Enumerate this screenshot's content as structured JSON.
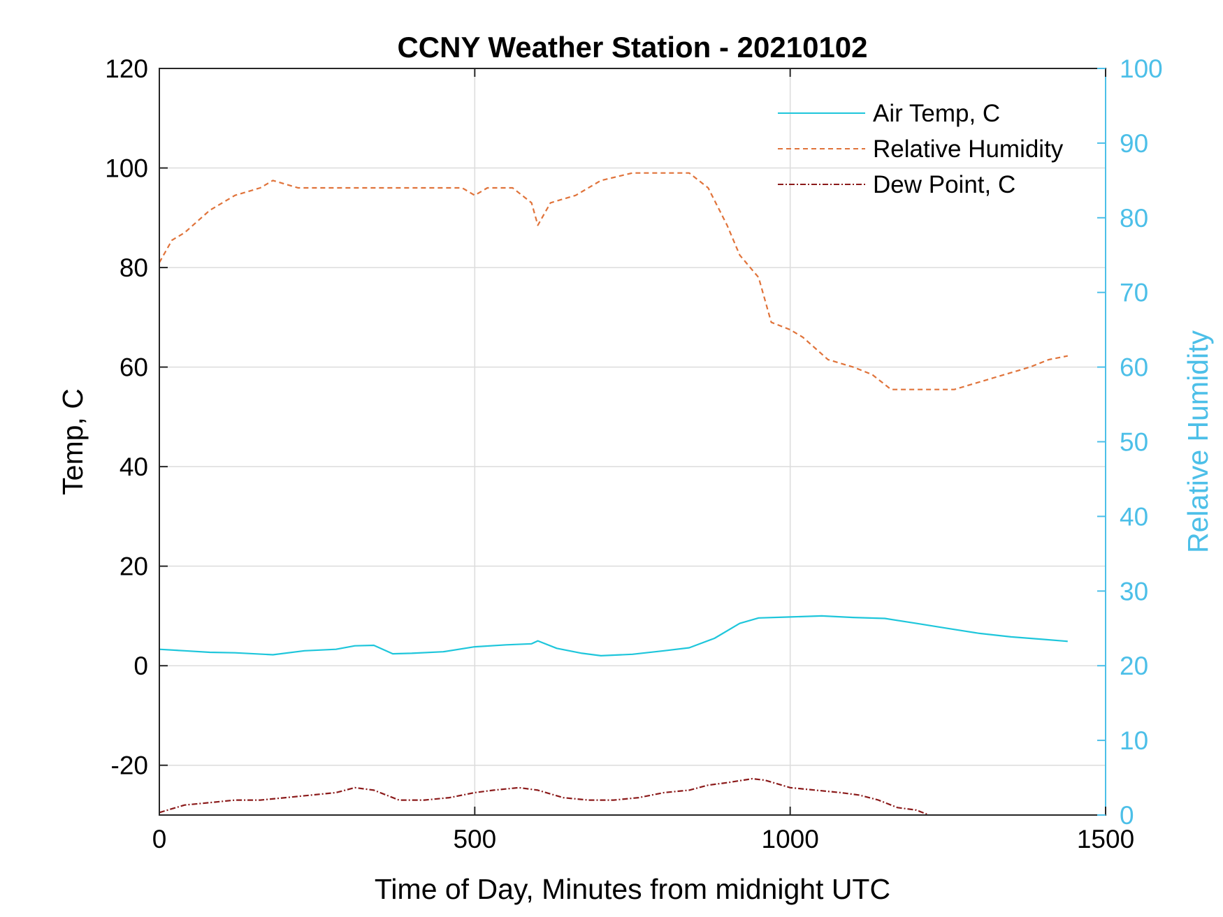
{
  "chart_data": {
    "type": "line",
    "title": "CCNY Weather Station - 20210102",
    "xlabel": "Time of Day, Minutes from midnight UTC",
    "ylabel_left": "Temp, C",
    "ylabel_right": "Relative Humidity",
    "xlim": [
      0,
      1500
    ],
    "ylim_left": [
      -30,
      120
    ],
    "ylim_right": [
      0,
      100
    ],
    "x_ticks": [
      "0",
      "500",
      "1000",
      "1500"
    ],
    "y_ticks_left": [
      "-20",
      "0",
      "20",
      "40",
      "60",
      "80",
      "100",
      "120"
    ],
    "y_ticks_right": [
      "0",
      "10",
      "20",
      "30",
      "40",
      "50",
      "60",
      "70",
      "80",
      "90",
      "100"
    ],
    "grid": true,
    "legend_position": "top-right",
    "colors": {
      "air_temp": "#1ec6db",
      "relative_humidity": "#e0733a",
      "dew_point": "#8b1a1a",
      "right_axis": "#4cbfe8"
    },
    "series": [
      {
        "name": "Air Temp, C",
        "axis": "left",
        "style": "solid",
        "x": [
          0,
          40,
          80,
          120,
          180,
          230,
          280,
          310,
          340,
          370,
          400,
          450,
          500,
          550,
          590,
          600,
          630,
          670,
          700,
          750,
          800,
          840,
          880,
          920,
          950,
          1000,
          1050,
          1100,
          1150,
          1200,
          1250,
          1300,
          1350,
          1400,
          1440
        ],
        "y": [
          3.3,
          3.0,
          2.7,
          2.6,
          2.2,
          3.0,
          3.3,
          4.0,
          4.1,
          2.4,
          2.5,
          2.8,
          3.8,
          4.2,
          4.4,
          5.0,
          3.5,
          2.5,
          2.0,
          2.3,
          3.0,
          3.6,
          5.5,
          8.5,
          9.6,
          9.8,
          10.0,
          9.7,
          9.5,
          8.5,
          7.5,
          6.5,
          5.8,
          5.3,
          4.9
        ]
      },
      {
        "name": "Relative Humidity",
        "axis": "right",
        "style": "dashed",
        "x": [
          0,
          20,
          40,
          80,
          120,
          160,
          180,
          220,
          260,
          300,
          340,
          380,
          420,
          450,
          480,
          500,
          520,
          560,
          590,
          600,
          620,
          660,
          700,
          750,
          800,
          840,
          870,
          900,
          920,
          950,
          970,
          1000,
          1020,
          1060,
          1100,
          1130,
          1160,
          1180,
          1200,
          1230,
          1260,
          1300,
          1340,
          1380,
          1410,
          1440
        ],
        "y": [
          74,
          77,
          78,
          81,
          83,
          84,
          85,
          84,
          84,
          84,
          84,
          84,
          84,
          84,
          84,
          83,
          84,
          84,
          82,
          79,
          82,
          83,
          85,
          86,
          86,
          86,
          84,
          79,
          75,
          72,
          66,
          65,
          64,
          61,
          60,
          59,
          57,
          57,
          57,
          57,
          57,
          58,
          59,
          60,
          61,
          61.5
        ]
      },
      {
        "name": "Dew Point, C",
        "axis": "left",
        "style": "dash-dot",
        "x": [
          0,
          40,
          80,
          120,
          160,
          200,
          240,
          280,
          310,
          340,
          380,
          420,
          460,
          500,
          530,
          570,
          600,
          640,
          680,
          720,
          760,
          800,
          840,
          870,
          900,
          940,
          960,
          1000,
          1040,
          1080,
          1110,
          1140,
          1170,
          1200,
          1220
        ],
        "y": [
          -29.5,
          -28.0,
          -27.5,
          -27.0,
          -27.0,
          -26.5,
          -26.0,
          -25.5,
          -24.5,
          -25.0,
          -27.0,
          -27.0,
          -26.5,
          -25.5,
          -25.0,
          -24.5,
          -25.0,
          -26.5,
          -27.0,
          -27.0,
          -26.5,
          -25.5,
          -25.0,
          -24.0,
          -23.5,
          -22.7,
          -23.0,
          -24.5,
          -25.0,
          -25.5,
          -26.0,
          -27.0,
          -28.5,
          -29.0,
          -30.0
        ]
      }
    ]
  }
}
